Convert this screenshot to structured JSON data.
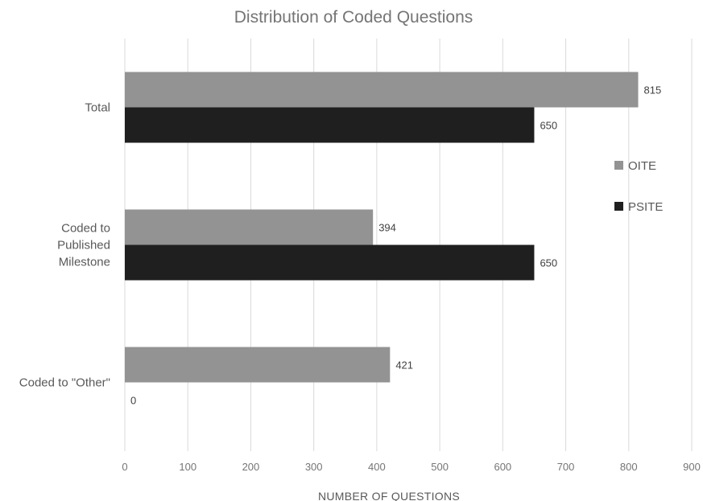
{
  "chart_data": {
    "type": "bar",
    "orientation": "horizontal",
    "title": "Distribution of Coded Questions",
    "xlabel": "NUMBER OF QUESTIONS",
    "ylabel": "",
    "categories": [
      [
        "Total"
      ],
      [
        "Coded to",
        "Published",
        "Milestone"
      ],
      [
        "Coded to \"Other\""
      ]
    ],
    "series": [
      {
        "name": "OITE",
        "color": "#939393",
        "values": [
          815,
          394,
          421
        ]
      },
      {
        "name": "PSITE",
        "color": "#1f1f1f",
        "values": [
          650,
          650,
          0
        ]
      }
    ],
    "xlim": [
      0,
      900
    ],
    "xticks": [
      0,
      100,
      200,
      300,
      400,
      500,
      600,
      700,
      800,
      900
    ],
    "grid": "vertical",
    "legend": "right",
    "data_labels": true
  }
}
